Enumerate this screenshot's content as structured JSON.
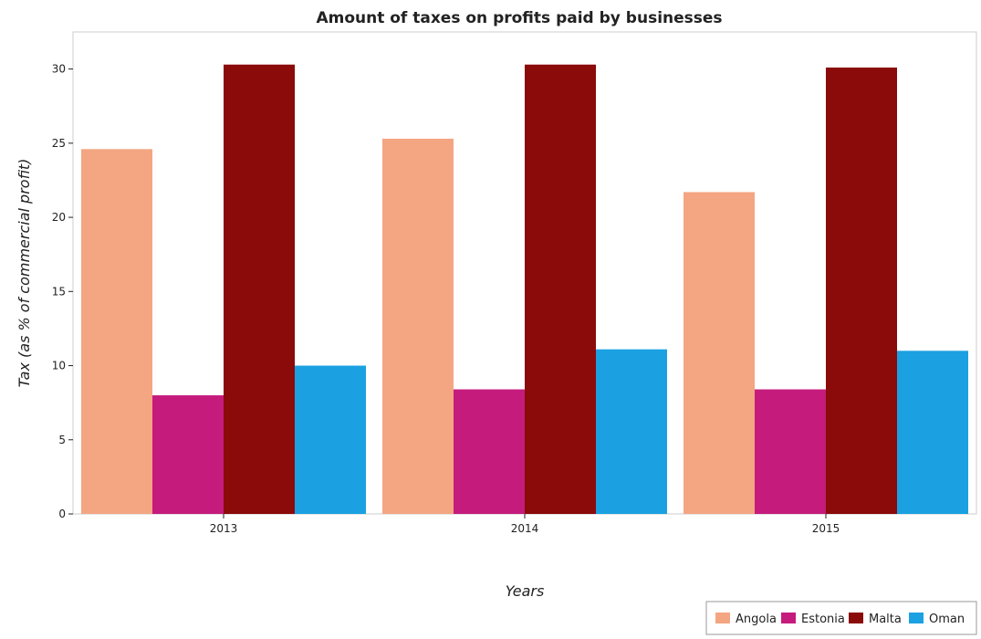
{
  "chart_data": {
    "type": "bar",
    "title": "Amount of taxes on profits paid by businesses",
    "xlabel": "Years",
    "ylabel": "Tax (as % of commercial profit)",
    "categories": [
      "2013",
      "2014",
      "2015"
    ],
    "ylim": [
      0,
      32.5
    ],
    "yticks": [
      0,
      5,
      10,
      15,
      20,
      25,
      30
    ],
    "series": [
      {
        "name": "Angola",
        "color": "#f4a582",
        "values": [
          24.6,
          25.3,
          21.7
        ]
      },
      {
        "name": "Estonia",
        "color": "#c51b7d",
        "values": [
          8.0,
          8.4,
          8.4
        ]
      },
      {
        "name": "Malta",
        "color": "#8b0a0a",
        "values": [
          30.3,
          30.3,
          30.1
        ]
      },
      {
        "name": "Oman",
        "color": "#1ba1e2",
        "values": [
          10.0,
          11.1,
          11.0
        ]
      }
    ],
    "legend_position": "bottom-right",
    "grid": false
  }
}
